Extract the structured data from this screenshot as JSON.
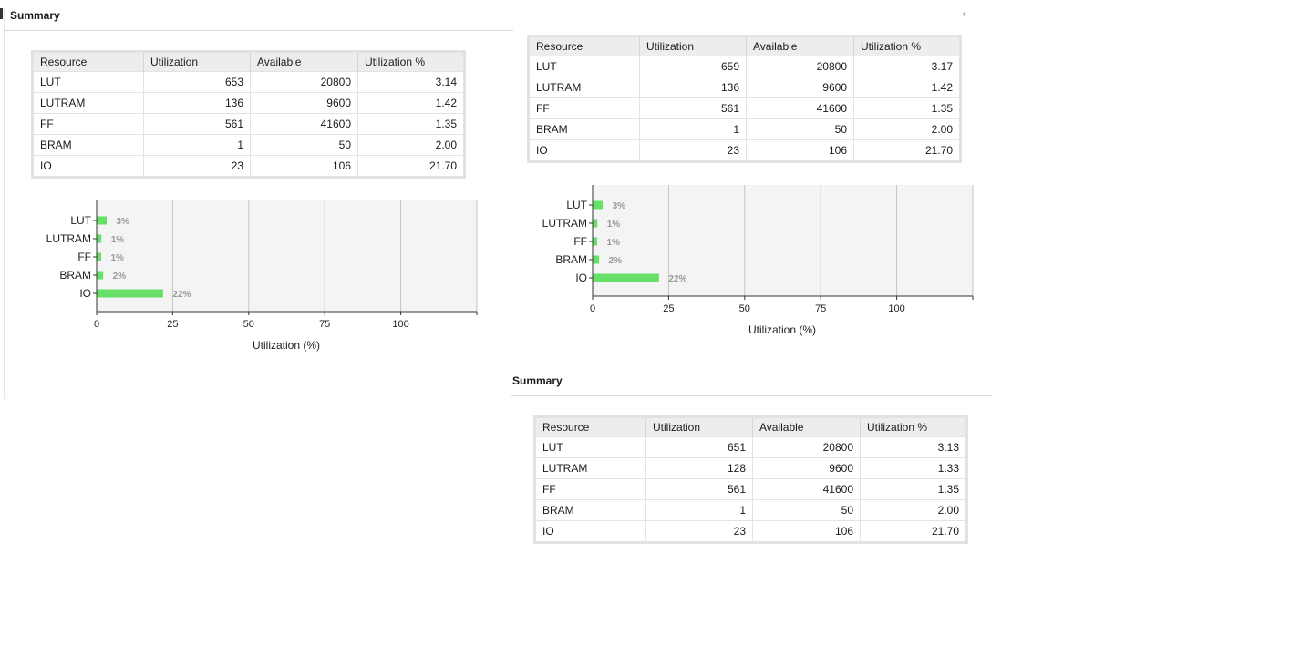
{
  "panels": [
    {
      "title": "Summary",
      "table": {
        "headers": [
          "Resource",
          "Utilization",
          "Available",
          "Utilization %"
        ],
        "rows": [
          [
            "LUT",
            "653",
            "20800",
            "3.14"
          ],
          [
            "LUTRAM",
            "136",
            "9600",
            "1.42"
          ],
          [
            "FF",
            "561",
            "41600",
            "1.35"
          ],
          [
            "BRAM",
            "1",
            "50",
            "2.00"
          ],
          [
            "IO",
            "23",
            "106",
            "21.70"
          ]
        ]
      }
    },
    {
      "title": "",
      "table": {
        "headers": [
          "Resource",
          "Utilization",
          "Available",
          "Utilization %"
        ],
        "rows": [
          [
            "LUT",
            "659",
            "20800",
            "3.17"
          ],
          [
            "LUTRAM",
            "136",
            "9600",
            "1.42"
          ],
          [
            "FF",
            "561",
            "41600",
            "1.35"
          ],
          [
            "BRAM",
            "1",
            "50",
            "2.00"
          ],
          [
            "IO",
            "23",
            "106",
            "21.70"
          ]
        ]
      }
    },
    {
      "title": "Summary",
      "table": {
        "headers": [
          "Resource",
          "Utilization",
          "Available",
          "Utilization %"
        ],
        "rows": [
          [
            "LUT",
            "651",
            "20800",
            "3.13"
          ],
          [
            "LUTRAM",
            "128",
            "9600",
            "1.33"
          ],
          [
            "FF",
            "561",
            "41600",
            "1.35"
          ],
          [
            "BRAM",
            "1",
            "50",
            "2.00"
          ],
          [
            "IO",
            "23",
            "106",
            "21.70"
          ]
        ]
      }
    }
  ],
  "chart_data": [
    {
      "type": "bar",
      "orientation": "horizontal",
      "categories": [
        "LUT",
        "LUTRAM",
        "FF",
        "BRAM",
        "IO"
      ],
      "values": [
        3.14,
        1.42,
        1.35,
        2.0,
        21.7
      ],
      "data_labels": [
        "3%",
        "1%",
        "1%",
        "2%",
        "22%"
      ],
      "xlabel": "Utilization (%)",
      "xticks": [
        "0",
        "25",
        "50",
        "75",
        "100"
      ],
      "xlim": [
        0,
        125
      ],
      "grid": true,
      "bar_color": "#66e066"
    },
    {
      "type": "bar",
      "orientation": "horizontal",
      "categories": [
        "LUT",
        "LUTRAM",
        "FF",
        "BRAM",
        "IO"
      ],
      "values": [
        3.17,
        1.42,
        1.35,
        2.0,
        21.7
      ],
      "data_labels": [
        "3%",
        "1%",
        "1%",
        "2%",
        "22%"
      ],
      "xlabel": "Utilization (%)",
      "xticks": [
        "0",
        "25",
        "50",
        "75",
        "100"
      ],
      "xlim": [
        0,
        125
      ],
      "grid": true,
      "bar_color": "#66e066"
    }
  ]
}
